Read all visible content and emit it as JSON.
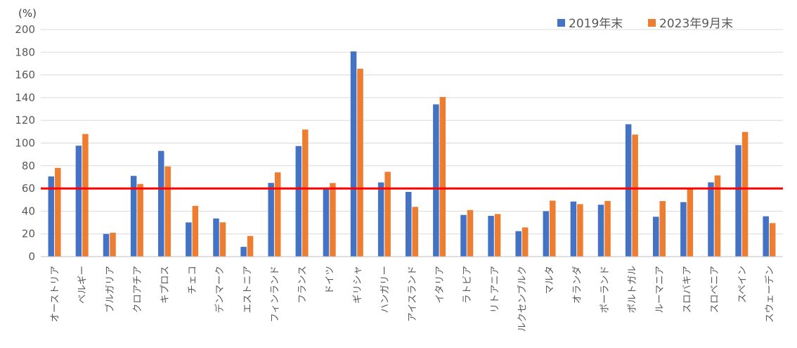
{
  "chart_data": {
    "type": "bar",
    "unit_label": "(%)",
    "title": "",
    "xlabel": "",
    "ylabel": "",
    "ylim": [
      0,
      200
    ],
    "yticks": [
      0,
      20,
      40,
      60,
      80,
      100,
      120,
      140,
      160,
      180,
      200
    ],
    "grid": true,
    "legend_position": "top-right",
    "categories": [
      "オーストリア",
      "ベルギー",
      "ブルガリア",
      "クロアチア",
      "キプロス",
      "チェコ",
      "デンマーク",
      "エストニア",
      "フィンランド",
      "フランス",
      "ドイツ",
      "ギリシャ",
      "ハンガリー",
      "アイスランド",
      "イタリア",
      "ラトビア",
      "リトアニア",
      "ルクセンブルク",
      "マルタ",
      "オランダ",
      "ポーランド",
      "ポルトガル",
      "ルーマニア",
      "スロバキア",
      "スロベニア",
      "スペイン",
      "スウェーデン"
    ],
    "series": [
      {
        "name": "2019年末",
        "color": "#4472C4",
        "values": [
          70.6,
          97.7,
          20.0,
          71.1,
          93.1,
          30.1,
          33.6,
          8.6,
          64.9,
          97.4,
          59.6,
          180.7,
          65.3,
          57.0,
          134.1,
          36.7,
          35.9,
          22.4,
          40.0,
          48.5,
          45.7,
          116.6,
          35.1,
          48.0,
          65.4,
          98.2,
          35.5
        ]
      },
      {
        "name": "2023年9月末",
        "color": "#ED7D31",
        "values": [
          78.1,
          108.0,
          21.0,
          64.0,
          79.4,
          44.7,
          30.2,
          18.2,
          74.2,
          111.9,
          64.8,
          165.5,
          74.7,
          43.8,
          140.6,
          41.0,
          37.5,
          25.7,
          49.3,
          46.2,
          49.0,
          107.5,
          48.9,
          59.8,
          71.5,
          109.8,
          29.5
        ]
      }
    ],
    "reference_line": {
      "value": 60,
      "color": "#FF0000"
    }
  }
}
